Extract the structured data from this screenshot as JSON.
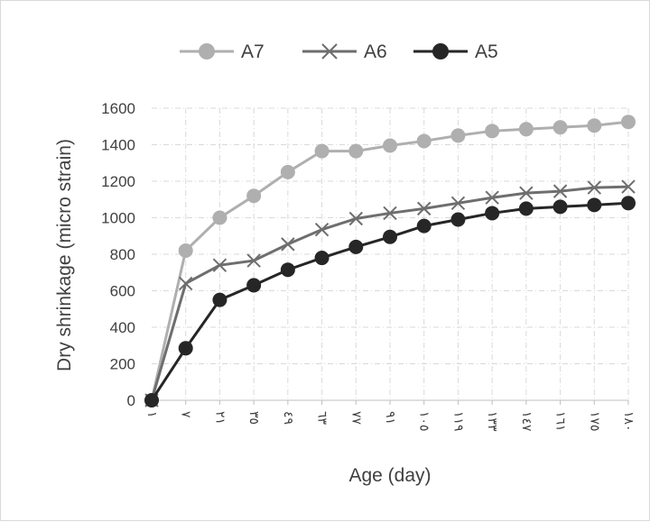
{
  "chart_data": {
    "type": "line",
    "title": "",
    "xlabel": "Age (day)",
    "ylabel": "Dry shrinkage (micro strain)",
    "categories": [
      "١",
      "٧",
      "٢١",
      "٣٥",
      "٤٩",
      "٦٣",
      "٧٧",
      "٩١",
      "١٠٥",
      "١١٩",
      "١٣٣",
      "١٤٧",
      "١٦١",
      "١٧٥",
      "١٨٠"
    ],
    "ylim": [
      0,
      1600
    ],
    "yticks": [
      0,
      200,
      400,
      600,
      800,
      1000,
      1200,
      1400,
      1600
    ],
    "grid": true,
    "legend_position": "top",
    "series": [
      {
        "name": "A7",
        "color": "#afafaf",
        "marker": "circle",
        "values": [
          0,
          820,
          1000,
          1120,
          1250,
          1365,
          1365,
          1395,
          1420,
          1450,
          1475,
          1485,
          1495,
          1505,
          1525
        ]
      },
      {
        "name": "A6",
        "color": "#6e6e6e",
        "marker": "x",
        "values": [
          0,
          640,
          740,
          765,
          855,
          935,
          995,
          1025,
          1050,
          1080,
          1110,
          1135,
          1145,
          1165,
          1170
        ]
      },
      {
        "name": "A5",
        "color": "#262626",
        "marker": "circle",
        "values": [
          0,
          285,
          550,
          630,
          715,
          780,
          840,
          895,
          955,
          990,
          1025,
          1050,
          1060,
          1070,
          1080
        ]
      }
    ]
  }
}
